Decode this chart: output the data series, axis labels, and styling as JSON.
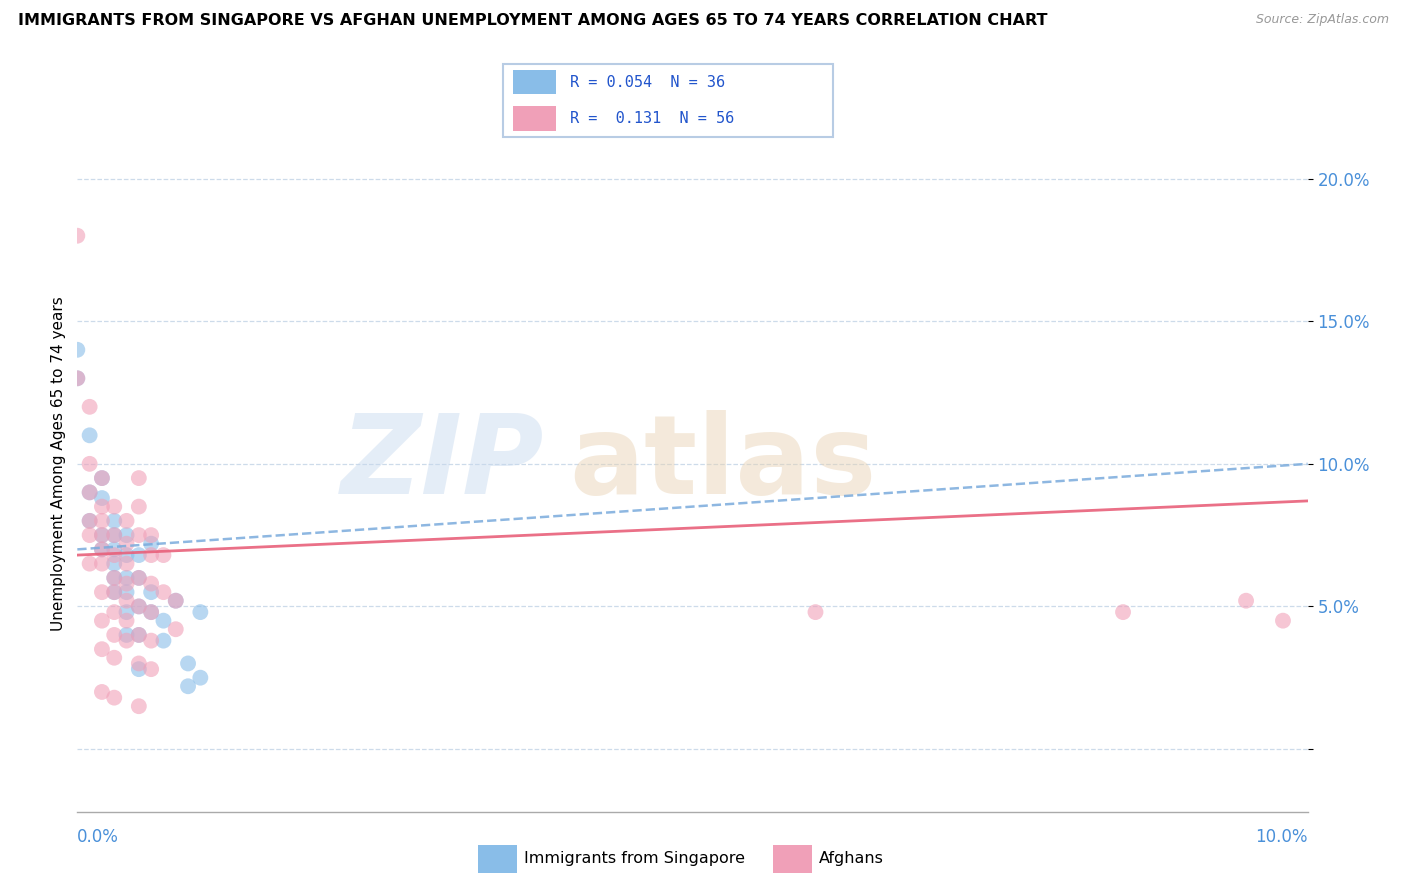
{
  "title": "IMMIGRANTS FROM SINGAPORE VS AFGHAN UNEMPLOYMENT AMONG AGES 65 TO 74 YEARS CORRELATION CHART",
  "source": "Source: ZipAtlas.com",
  "ylabel": "Unemployment Among Ages 65 to 74 years",
  "xlim": [
    0.0,
    0.1
  ],
  "ylim": [
    -0.022,
    0.222
  ],
  "yticks": [
    0.0,
    0.05,
    0.1,
    0.15,
    0.2
  ],
  "ytick_labels": [
    "",
    "5.0%",
    "10.0%",
    "15.0%",
    "20.0%"
  ],
  "color_singapore": "#89bde8",
  "color_afghan": "#f0a0b8",
  "color_singapore_line": "#7aabdc",
  "color_afghan_line": "#e8607a",
  "singapore_points": [
    [
      0.0,
      0.14
    ],
    [
      0.0,
      0.13
    ],
    [
      0.001,
      0.11
    ],
    [
      0.001,
      0.09
    ],
    [
      0.001,
      0.08
    ],
    [
      0.002,
      0.095
    ],
    [
      0.002,
      0.088
    ],
    [
      0.002,
      0.075
    ],
    [
      0.002,
      0.07
    ],
    [
      0.003,
      0.08
    ],
    [
      0.003,
      0.075
    ],
    [
      0.003,
      0.07
    ],
    [
      0.003,
      0.065
    ],
    [
      0.003,
      0.06
    ],
    [
      0.003,
      0.055
    ],
    [
      0.004,
      0.075
    ],
    [
      0.004,
      0.068
    ],
    [
      0.004,
      0.06
    ],
    [
      0.004,
      0.055
    ],
    [
      0.004,
      0.048
    ],
    [
      0.004,
      0.04
    ],
    [
      0.005,
      0.068
    ],
    [
      0.005,
      0.06
    ],
    [
      0.005,
      0.05
    ],
    [
      0.005,
      0.04
    ],
    [
      0.005,
      0.028
    ],
    [
      0.006,
      0.055
    ],
    [
      0.006,
      0.048
    ],
    [
      0.006,
      0.072
    ],
    [
      0.007,
      0.045
    ],
    [
      0.007,
      0.038
    ],
    [
      0.008,
      0.052
    ],
    [
      0.009,
      0.03
    ],
    [
      0.009,
      0.022
    ],
    [
      0.01,
      0.048
    ],
    [
      0.01,
      0.025
    ]
  ],
  "afghan_points": [
    [
      0.0,
      0.18
    ],
    [
      0.0,
      0.13
    ],
    [
      0.001,
      0.12
    ],
    [
      0.001,
      0.1
    ],
    [
      0.001,
      0.09
    ],
    [
      0.001,
      0.08
    ],
    [
      0.001,
      0.075
    ],
    [
      0.001,
      0.065
    ],
    [
      0.002,
      0.095
    ],
    [
      0.002,
      0.085
    ],
    [
      0.002,
      0.08
    ],
    [
      0.002,
      0.075
    ],
    [
      0.002,
      0.07
    ],
    [
      0.002,
      0.065
    ],
    [
      0.002,
      0.055
    ],
    [
      0.002,
      0.045
    ],
    [
      0.002,
      0.035
    ],
    [
      0.002,
      0.02
    ],
    [
      0.003,
      0.085
    ],
    [
      0.003,
      0.075
    ],
    [
      0.003,
      0.068
    ],
    [
      0.003,
      0.06
    ],
    [
      0.003,
      0.055
    ],
    [
      0.003,
      0.048
    ],
    [
      0.003,
      0.04
    ],
    [
      0.003,
      0.032
    ],
    [
      0.003,
      0.018
    ],
    [
      0.004,
      0.08
    ],
    [
      0.004,
      0.072
    ],
    [
      0.004,
      0.065
    ],
    [
      0.004,
      0.058
    ],
    [
      0.004,
      0.052
    ],
    [
      0.004,
      0.045
    ],
    [
      0.004,
      0.038
    ],
    [
      0.005,
      0.095
    ],
    [
      0.005,
      0.085
    ],
    [
      0.005,
      0.075
    ],
    [
      0.005,
      0.06
    ],
    [
      0.005,
      0.05
    ],
    [
      0.005,
      0.04
    ],
    [
      0.005,
      0.03
    ],
    [
      0.005,
      0.015
    ],
    [
      0.006,
      0.075
    ],
    [
      0.006,
      0.068
    ],
    [
      0.006,
      0.058
    ],
    [
      0.006,
      0.048
    ],
    [
      0.006,
      0.038
    ],
    [
      0.006,
      0.028
    ],
    [
      0.007,
      0.068
    ],
    [
      0.007,
      0.055
    ],
    [
      0.008,
      0.052
    ],
    [
      0.008,
      0.042
    ],
    [
      0.06,
      0.048
    ],
    [
      0.085,
      0.048
    ],
    [
      0.095,
      0.052
    ],
    [
      0.098,
      0.045
    ]
  ]
}
